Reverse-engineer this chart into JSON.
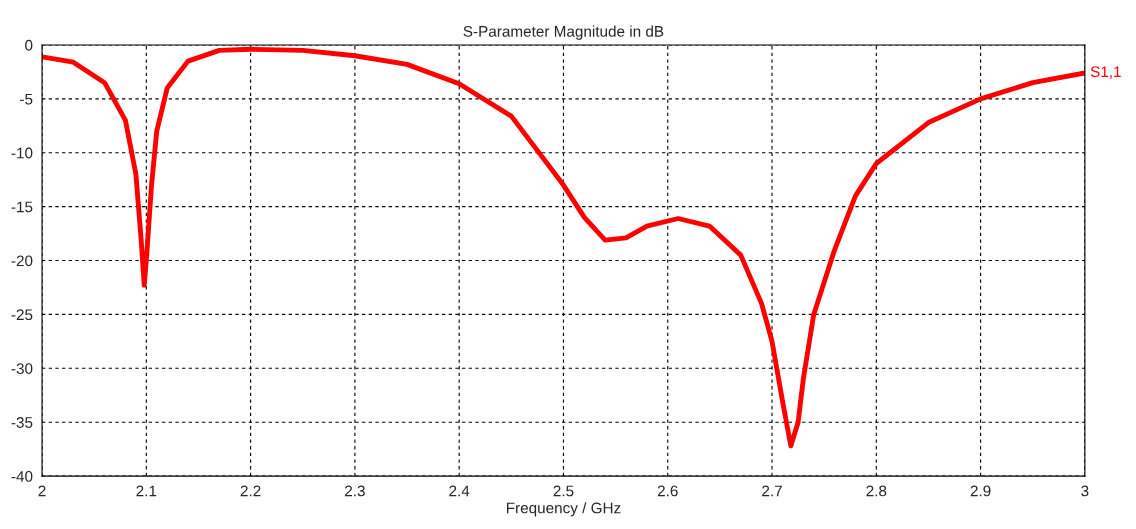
{
  "chart_data": {
    "type": "line",
    "title": "S-Parameter Magnitude in dB",
    "xlabel": "Frequency / GHz",
    "xlim": [
      2,
      3
    ],
    "xticks": [
      2,
      2.1,
      2.2,
      2.3,
      2.4,
      2.5,
      2.6,
      2.7,
      2.8,
      2.9,
      3
    ],
    "ylim": [
      -40,
      0
    ],
    "yticks": [
      -40,
      -35,
      -30,
      -25,
      -20,
      -15,
      -10,
      -5,
      0
    ],
    "grid": true,
    "line_style": "solid",
    "legend": "right",
    "series": [
      {
        "name": "S1,1",
        "color": "#ff0000",
        "x": [
          2.0,
          2.03,
          2.06,
          2.08,
          2.09,
          2.095,
          2.098,
          2.1,
          2.105,
          2.11,
          2.12,
          2.14,
          2.17,
          2.2,
          2.25,
          2.3,
          2.35,
          2.4,
          2.45,
          2.5,
          2.52,
          2.54,
          2.56,
          2.58,
          2.61,
          2.64,
          2.67,
          2.69,
          2.7,
          2.71,
          2.718,
          2.725,
          2.73,
          2.74,
          2.76,
          2.78,
          2.8,
          2.85,
          2.9,
          2.95,
          3.0
        ],
        "values": [
          -1.1,
          -1.6,
          -3.5,
          -7,
          -12,
          -18,
          -22.3,
          -20,
          -13,
          -8,
          -4,
          -1.5,
          -0.5,
          -0.4,
          -0.5,
          -1.0,
          -1.8,
          -3.6,
          -6.6,
          -13,
          -16,
          -18.1,
          -17.9,
          -16.8,
          -16.1,
          -16.8,
          -19.5,
          -24,
          -27.5,
          -33,
          -37.2,
          -35,
          -31,
          -25,
          -19,
          -14,
          -11,
          -7.2,
          -5,
          -3.5,
          -2.6
        ]
      }
    ]
  }
}
